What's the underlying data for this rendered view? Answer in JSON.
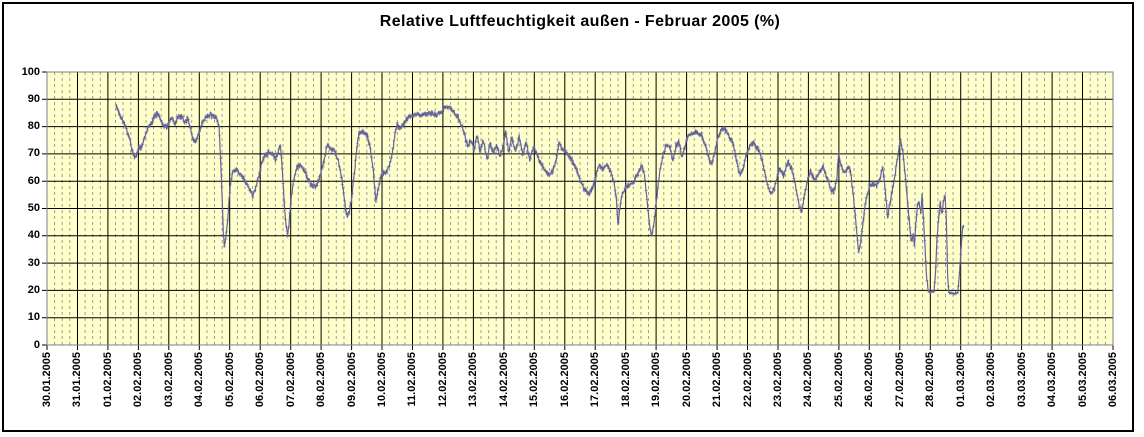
{
  "title": "Relative Luftfeuchtigkeit außen - Februar 2005 (%)",
  "colors": {
    "plot_background": "#FFFFCC",
    "outer_background": "#FFFFFF",
    "series_line": "#63639B",
    "major_grid": "#000000",
    "minor_grid": "#9C9C9C",
    "plot_border": "#808080",
    "frame_border": "#000000",
    "label_text": "#000000"
  },
  "chart_data": {
    "type": "line",
    "title": "Relative Luftfeuchtigkeit außen - Februar 2005 (%)",
    "legend_position": "none",
    "y_axis": {
      "min": 0,
      "max": 100,
      "ticks": [
        0,
        10,
        20,
        30,
        40,
        50,
        60,
        70,
        80,
        90,
        100
      ]
    },
    "x_axis": {
      "labels": [
        "30.01.2005",
        "31.01.2005",
        "01.02.2005",
        "02.02.2005",
        "03.02.2005",
        "04.02.2005",
        "05.02.2005",
        "06.02.2005",
        "07.02.2005",
        "08.02.2005",
        "09.02.2005",
        "10.02.2005",
        "11.02.2005",
        "12.02.2005",
        "13.02.2005",
        "14.02.2005",
        "15.02.2005",
        "16.02.2005",
        "17.02.2005",
        "18.02.2005",
        "19.02.2005",
        "20.02.2005",
        "21.02.2005",
        "22.02.2005",
        "23.02.2005",
        "24.02.2005",
        "25.02.2005",
        "26.02.2005",
        "27.02.2005",
        "28.02.2005",
        "01.03.2005",
        "02.03.2005",
        "03.03.2005",
        "04.03.2005",
        "05.03.2005",
        "06.03.2005"
      ],
      "minor_gridlines_per_day": 4
    },
    "grid": {
      "horizontal_step": 10,
      "vertical_major": "1 day",
      "vertical_minor": "6 hours"
    },
    "series": [
      {
        "name": "Relative Luftfeuchtigkeit außen (%)",
        "x_unit": "days since 2005-02-01 00:00",
        "x_offset_days": 2,
        "points": [
          [
            0.27,
            87.5
          ],
          [
            0.33,
            86
          ],
          [
            0.42,
            84
          ],
          [
            0.55,
            81
          ],
          [
            0.7,
            76
          ],
          [
            0.8,
            71
          ],
          [
            0.88,
            68.5
          ],
          [
            0.96,
            70
          ],
          [
            1.02,
            73
          ],
          [
            1.08,
            72
          ],
          [
            1.15,
            74
          ],
          [
            1.25,
            78
          ],
          [
            1.35,
            80
          ],
          [
            1.45,
            81.5
          ],
          [
            1.55,
            84
          ],
          [
            1.63,
            85
          ],
          [
            1.72,
            83
          ],
          [
            1.82,
            80.5
          ],
          [
            1.92,
            80
          ],
          [
            2.02,
            81.5
          ],
          [
            2.1,
            83
          ],
          [
            2.2,
            80.5
          ],
          [
            2.3,
            83.5
          ],
          [
            2.42,
            84
          ],
          [
            2.52,
            81.5
          ],
          [
            2.62,
            83
          ],
          [
            2.72,
            79
          ],
          [
            2.8,
            75
          ],
          [
            2.88,
            74.5
          ],
          [
            3.0,
            78
          ],
          [
            3.1,
            81.5
          ],
          [
            3.22,
            83.5
          ],
          [
            3.38,
            84
          ],
          [
            3.55,
            83.5
          ],
          [
            3.65,
            80
          ],
          [
            3.7,
            68
          ],
          [
            3.75,
            54
          ],
          [
            3.79,
            42
          ],
          [
            3.82,
            36.5
          ],
          [
            3.86,
            38.5
          ],
          [
            3.92,
            44
          ],
          [
            3.98,
            53
          ],
          [
            4.04,
            60
          ],
          [
            4.1,
            63.5
          ],
          [
            4.22,
            64
          ],
          [
            4.35,
            63
          ],
          [
            4.48,
            60.5
          ],
          [
            4.6,
            58
          ],
          [
            4.7,
            56
          ],
          [
            4.77,
            55
          ],
          [
            4.85,
            57.5
          ],
          [
            4.95,
            62
          ],
          [
            5.05,
            66.5
          ],
          [
            5.15,
            69.5
          ],
          [
            5.28,
            70.5
          ],
          [
            5.42,
            70
          ],
          [
            5.5,
            67.5
          ],
          [
            5.58,
            70
          ],
          [
            5.66,
            74
          ],
          [
            5.72,
            65
          ],
          [
            5.79,
            52
          ],
          [
            5.85,
            43
          ],
          [
            5.9,
            40.5
          ],
          [
            5.96,
            46
          ],
          [
            6.02,
            54
          ],
          [
            6.1,
            60
          ],
          [
            6.2,
            65
          ],
          [
            6.32,
            66
          ],
          [
            6.45,
            64
          ],
          [
            6.58,
            60.5
          ],
          [
            6.7,
            58
          ],
          [
            6.8,
            58
          ],
          [
            6.92,
            60
          ],
          [
            7.02,
            64
          ],
          [
            7.12,
            69
          ],
          [
            7.2,
            73.5
          ],
          [
            7.32,
            72
          ],
          [
            7.45,
            71
          ],
          [
            7.58,
            67
          ],
          [
            7.7,
            59
          ],
          [
            7.8,
            50
          ],
          [
            7.86,
            47
          ],
          [
            7.93,
            49
          ],
          [
            8.0,
            54
          ],
          [
            8.08,
            62
          ],
          [
            8.16,
            71
          ],
          [
            8.24,
            77.5
          ],
          [
            8.38,
            78
          ],
          [
            8.52,
            76.5
          ],
          [
            8.62,
            72
          ],
          [
            8.72,
            63
          ],
          [
            8.8,
            52.5
          ],
          [
            8.88,
            57.5
          ],
          [
            8.95,
            61.5
          ],
          [
            9.05,
            63
          ],
          [
            9.15,
            63.5
          ],
          [
            9.25,
            66
          ],
          [
            9.35,
            71
          ],
          [
            9.44,
            78
          ],
          [
            9.5,
            81
          ],
          [
            9.58,
            79.5
          ],
          [
            9.68,
            80.5
          ],
          [
            9.8,
            82.5
          ],
          [
            9.95,
            84
          ],
          [
            10.1,
            84.5
          ],
          [
            10.25,
            84
          ],
          [
            10.4,
            84.5
          ],
          [
            10.55,
            85
          ],
          [
            10.7,
            84.5
          ],
          [
            10.85,
            84.5
          ],
          [
            10.98,
            86
          ],
          [
            11.08,
            87.5
          ],
          [
            11.2,
            87
          ],
          [
            11.35,
            85.5
          ],
          [
            11.5,
            83.5
          ],
          [
            11.62,
            80
          ],
          [
            11.72,
            76.5
          ],
          [
            11.82,
            73
          ],
          [
            11.92,
            75
          ],
          [
            12.02,
            71.5
          ],
          [
            12.12,
            77
          ],
          [
            12.22,
            70.5
          ],
          [
            12.32,
            75
          ],
          [
            12.45,
            68.5
          ],
          [
            12.55,
            74
          ],
          [
            12.65,
            70
          ],
          [
            12.76,
            73.5
          ],
          [
            12.87,
            69
          ],
          [
            12.98,
            72.5
          ],
          [
            13.06,
            78
          ],
          [
            13.16,
            70.5
          ],
          [
            13.26,
            76
          ],
          [
            13.38,
            71
          ],
          [
            13.5,
            76.5
          ],
          [
            13.62,
            69.5
          ],
          [
            13.73,
            74
          ],
          [
            13.85,
            68
          ],
          [
            13.97,
            73
          ],
          [
            14.08,
            70
          ],
          [
            14.2,
            66.5
          ],
          [
            14.33,
            64.5
          ],
          [
            14.48,
            62.5
          ],
          [
            14.6,
            63.5
          ],
          [
            14.72,
            68
          ],
          [
            14.81,
            74
          ],
          [
            14.9,
            72
          ],
          [
            15.0,
            71
          ],
          [
            15.12,
            69.5
          ],
          [
            15.25,
            67.5
          ],
          [
            15.4,
            64
          ],
          [
            15.55,
            59
          ],
          [
            15.68,
            56.5
          ],
          [
            15.8,
            55.5
          ],
          [
            15.92,
            57.5
          ],
          [
            16.02,
            62
          ],
          [
            16.12,
            65.5
          ],
          [
            16.25,
            64.5
          ],
          [
            16.4,
            66
          ],
          [
            16.52,
            63.5
          ],
          [
            16.62,
            59
          ],
          [
            16.7,
            53
          ],
          [
            16.75,
            43.5
          ],
          [
            16.8,
            49
          ],
          [
            16.88,
            55
          ],
          [
            16.98,
            57.5
          ],
          [
            17.12,
            58.5
          ],
          [
            17.28,
            60
          ],
          [
            17.42,
            63
          ],
          [
            17.53,
            66
          ],
          [
            17.62,
            62
          ],
          [
            17.7,
            53
          ],
          [
            17.78,
            44
          ],
          [
            17.84,
            40.5
          ],
          [
            17.9,
            42
          ],
          [
            17.96,
            48
          ],
          [
            18.04,
            56
          ],
          [
            18.13,
            64
          ],
          [
            18.23,
            70
          ],
          [
            18.33,
            73.5
          ],
          [
            18.45,
            72.5
          ],
          [
            18.55,
            67.5
          ],
          [
            18.65,
            73
          ],
          [
            18.75,
            74.5
          ],
          [
            18.84,
            69
          ],
          [
            18.94,
            72
          ],
          [
            19.04,
            76.5
          ],
          [
            19.18,
            77.5
          ],
          [
            19.33,
            78
          ],
          [
            19.48,
            77
          ],
          [
            19.62,
            73
          ],
          [
            19.74,
            68
          ],
          [
            19.82,
            66
          ],
          [
            19.92,
            70.5
          ],
          [
            20.02,
            75.5
          ],
          [
            20.12,
            78.5
          ],
          [
            20.25,
            79.5
          ],
          [
            20.4,
            76.5
          ],
          [
            20.53,
            73.5
          ],
          [
            20.65,
            67
          ],
          [
            20.76,
            62
          ],
          [
            20.86,
            65
          ],
          [
            20.96,
            69.5
          ],
          [
            21.08,
            73.5
          ],
          [
            21.22,
            74
          ],
          [
            21.38,
            71
          ],
          [
            21.52,
            65.5
          ],
          [
            21.66,
            58.5
          ],
          [
            21.78,
            55
          ],
          [
            21.88,
            57.5
          ],
          [
            21.98,
            61.5
          ],
          [
            22.06,
            65
          ],
          [
            22.18,
            62
          ],
          [
            22.32,
            67
          ],
          [
            22.45,
            64.5
          ],
          [
            22.58,
            58
          ],
          [
            22.7,
            51
          ],
          [
            22.78,
            49
          ],
          [
            22.88,
            55.5
          ],
          [
            22.98,
            61
          ],
          [
            23.08,
            64
          ],
          [
            23.2,
            60.5
          ],
          [
            23.33,
            62.5
          ],
          [
            23.47,
            65.5
          ],
          [
            23.6,
            61.5
          ],
          [
            23.72,
            57.5
          ],
          [
            23.83,
            56
          ],
          [
            23.93,
            61
          ],
          [
            23.99,
            70
          ],
          [
            24.05,
            66.5
          ],
          [
            24.15,
            63
          ],
          [
            24.25,
            64
          ],
          [
            24.33,
            65.5
          ],
          [
            24.4,
            62
          ],
          [
            24.47,
            55
          ],
          [
            24.54,
            47
          ],
          [
            24.6,
            40
          ],
          [
            24.65,
            34
          ],
          [
            24.7,
            36.5
          ],
          [
            24.77,
            43
          ],
          [
            24.85,
            50
          ],
          [
            24.93,
            55
          ],
          [
            25.0,
            58
          ],
          [
            25.12,
            59
          ],
          [
            25.24,
            58.5
          ],
          [
            25.35,
            61
          ],
          [
            25.44,
            65
          ],
          [
            25.53,
            56
          ],
          [
            25.6,
            46.5
          ],
          [
            25.68,
            52
          ],
          [
            25.78,
            58
          ],
          [
            25.88,
            65
          ],
          [
            25.96,
            71
          ],
          [
            26.02,
            75
          ],
          [
            26.1,
            71
          ],
          [
            26.18,
            62
          ],
          [
            26.26,
            52
          ],
          [
            26.32,
            44
          ],
          [
            26.38,
            38
          ],
          [
            26.44,
            41
          ],
          [
            26.48,
            36
          ],
          [
            26.53,
            45
          ],
          [
            26.58,
            51
          ],
          [
            26.64,
            52
          ],
          [
            26.69,
            48
          ],
          [
            26.73,
            55
          ],
          [
            26.78,
            46
          ],
          [
            26.83,
            35
          ],
          [
            26.88,
            25
          ],
          [
            26.93,
            20
          ],
          [
            26.97,
            19.5
          ],
          [
            27.12,
            19.5
          ],
          [
            27.17,
            26
          ],
          [
            27.22,
            39
          ],
          [
            27.27,
            46
          ],
          [
            27.33,
            52
          ],
          [
            27.39,
            48
          ],
          [
            27.44,
            53
          ],
          [
            27.49,
            55
          ],
          [
            27.53,
            45
          ],
          [
            27.57,
            26
          ],
          [
            27.61,
            19
          ],
          [
            27.9,
            19
          ],
          [
            27.95,
            25
          ],
          [
            28.01,
            35
          ],
          [
            28.06,
            43
          ],
          [
            28.09,
            44
          ]
        ]
      }
    ]
  }
}
